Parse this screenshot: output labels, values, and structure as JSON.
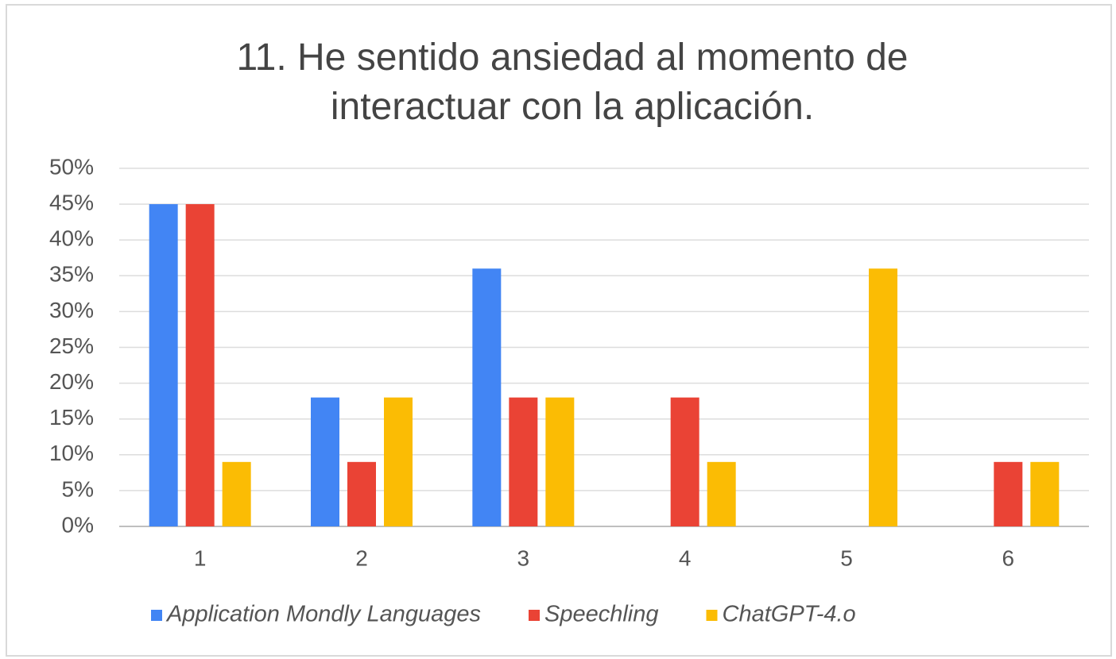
{
  "chart_data": {
    "type": "bar",
    "title": "11. He sentido ansiedad al momento de interactuar con la aplicación.",
    "categories": [
      "1",
      "2",
      "3",
      "4",
      "5",
      "6"
    ],
    "series": [
      {
        "name": "Application Mondly Languages",
        "color": "#4285f4",
        "values": [
          45,
          18,
          36,
          0,
          0,
          0
        ]
      },
      {
        "name": "Speechling",
        "color": "#ea4335",
        "values": [
          45,
          9,
          18,
          18,
          0,
          9
        ]
      },
      {
        "name": "ChatGPT-4.o",
        "color": "#fbbc04",
        "values": [
          9,
          18,
          18,
          9,
          36,
          9
        ]
      }
    ],
    "ylim": [
      0,
      50
    ],
    "yticks": [
      {
        "value": 0,
        "label": "0%"
      },
      {
        "value": 5,
        "label": "5%"
      },
      {
        "value": 10,
        "label": "10%"
      },
      {
        "value": 15,
        "label": "15%"
      },
      {
        "value": 20,
        "label": "20%"
      },
      {
        "value": 25,
        "label": "25%"
      },
      {
        "value": 30,
        "label": "30%"
      },
      {
        "value": 35,
        "label": "35%"
      },
      {
        "value": 40,
        "label": "40%"
      },
      {
        "value": 45,
        "label": "45%"
      },
      {
        "value": 50,
        "label": "50%"
      }
    ],
    "grid": true,
    "legend": "bottom"
  }
}
